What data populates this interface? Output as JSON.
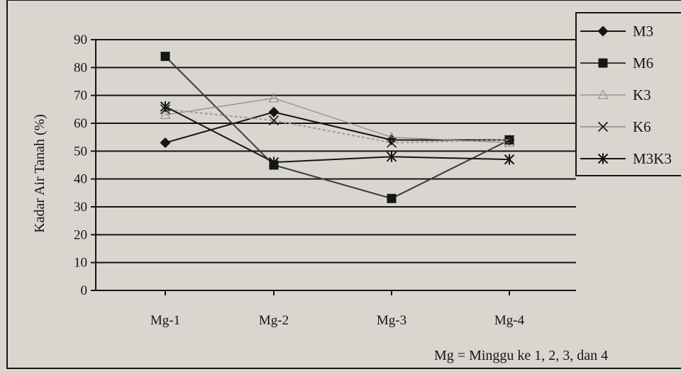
{
  "chart_data": {
    "type": "line",
    "title": "",
    "xlabel": "",
    "ylabel": "Kadar Air Tanah (%)",
    "categories": [
      "Mg-1",
      "Mg-2",
      "Mg-3",
      "Mg-4"
    ],
    "ylim": [
      0,
      90
    ],
    "yticks": [
      0,
      10,
      20,
      30,
      40,
      50,
      60,
      70,
      80,
      90
    ],
    "grid": true,
    "legend_position": "right",
    "note": "Mg = Minggu ke 1, 2, 3, dan 4",
    "series": [
      {
        "name": "M3",
        "marker": "diamond",
        "values": [
          53,
          64,
          54,
          54
        ]
      },
      {
        "name": "M6",
        "marker": "square",
        "values": [
          84,
          45,
          33,
          54
        ]
      },
      {
        "name": "K3",
        "marker": "triangle",
        "values": [
          63,
          69,
          55,
          53
        ]
      },
      {
        "name": "K6",
        "marker": "x",
        "values": [
          65,
          61,
          53,
          54
        ]
      },
      {
        "name": "M3K3",
        "marker": "star",
        "values": [
          66,
          46,
          48,
          47
        ]
      }
    ],
    "colors": {
      "line": "#151515",
      "faint_line": "#8a8a88",
      "background": "#d9d6cf"
    }
  }
}
